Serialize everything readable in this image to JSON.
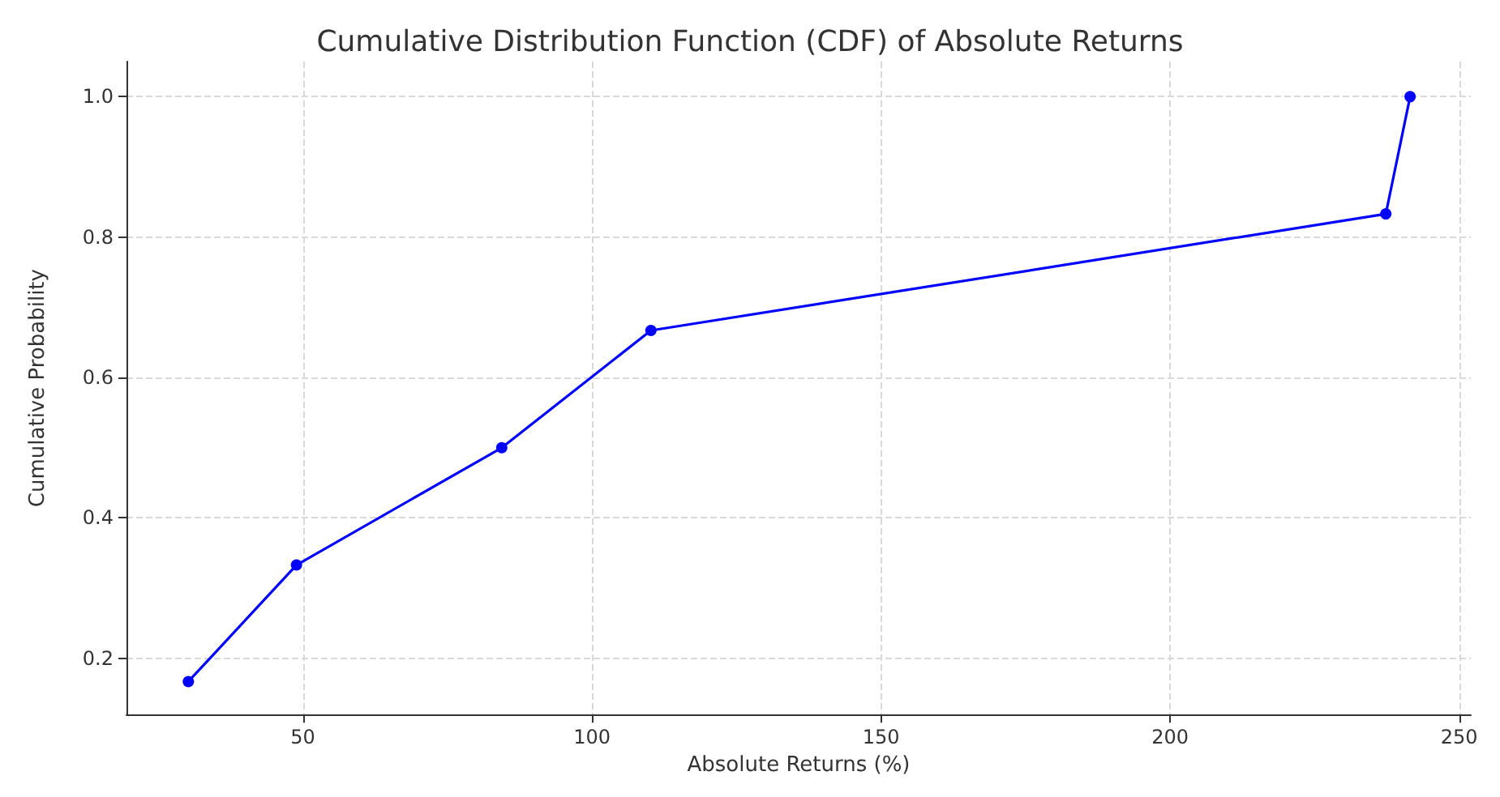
{
  "chart_data": {
    "type": "line",
    "title": "Cumulative Distribution Function (CDF) of Absolute Returns",
    "xlabel": "Absolute Returns (%)",
    "ylabel": "Cumulative Probability",
    "x": [
      30.2,
      48.9,
      84.4,
      110.2,
      237.3,
      241.5
    ],
    "series": [
      {
        "color": "#0000ff",
        "values": [
          0.167,
          0.333,
          0.5,
          0.667,
          0.833,
          1.0
        ]
      }
    ],
    "xlim": [
      19.5,
      252
    ],
    "ylim": [
      0.12,
      1.05
    ],
    "xticks": [
      50,
      100,
      150,
      200,
      250
    ],
    "yticks": [
      0.2,
      0.4,
      0.6,
      0.8,
      {
        "value": 1,
        "label": "1.0"
      }
    ],
    "grid": true,
    "marker": "circle",
    "line_style": "solid"
  }
}
